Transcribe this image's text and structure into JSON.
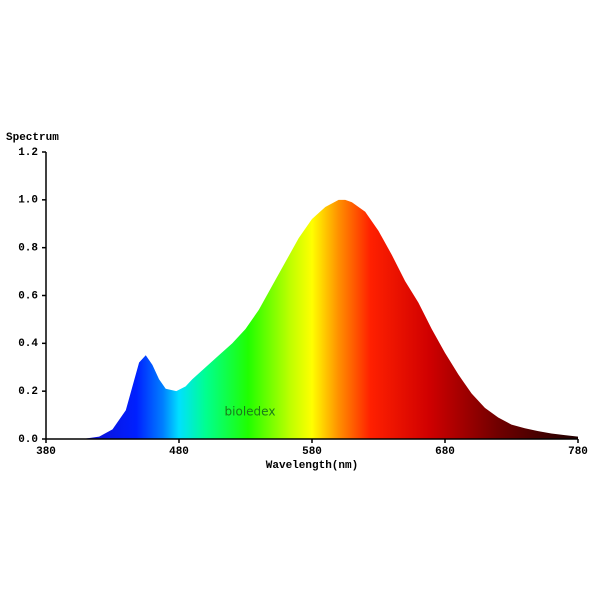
{
  "chart_data": {
    "type": "area",
    "title": "Spectrum",
    "x_label": "Wavelength(nm)",
    "watermark": "bioledex",
    "x": [
      380,
      390,
      400,
      410,
      420,
      430,
      440,
      445,
      450,
      455,
      460,
      465,
      470,
      478,
      485,
      490,
      500,
      510,
      520,
      530,
      540,
      550,
      560,
      570,
      580,
      590,
      600,
      605,
      610,
      620,
      630,
      640,
      650,
      660,
      670,
      680,
      690,
      700,
      710,
      720,
      730,
      740,
      750,
      760,
      770,
      780
    ],
    "values": [
      0,
      0,
      0,
      0.002,
      0.01,
      0.04,
      0.12,
      0.22,
      0.32,
      0.35,
      0.31,
      0.25,
      0.21,
      0.2,
      0.22,
      0.25,
      0.3,
      0.35,
      0.4,
      0.46,
      0.54,
      0.64,
      0.74,
      0.84,
      0.92,
      0.97,
      1.0,
      1.0,
      0.99,
      0.95,
      0.87,
      0.77,
      0.66,
      0.57,
      0.46,
      0.36,
      0.27,
      0.19,
      0.13,
      0.09,
      0.06,
      0.045,
      0.033,
      0.023,
      0.016,
      0.01
    ],
    "xlim": [
      380,
      780
    ],
    "ylim": [
      0,
      1.2
    ],
    "xticks": [
      380,
      480,
      580,
      680,
      780
    ],
    "yticks": [
      {
        "value": 0,
        "label": "0.0"
      },
      0.2,
      0.4,
      0.6,
      0.8,
      {
        "value": 1,
        "label": "1.0"
      },
      1.2
    ]
  }
}
